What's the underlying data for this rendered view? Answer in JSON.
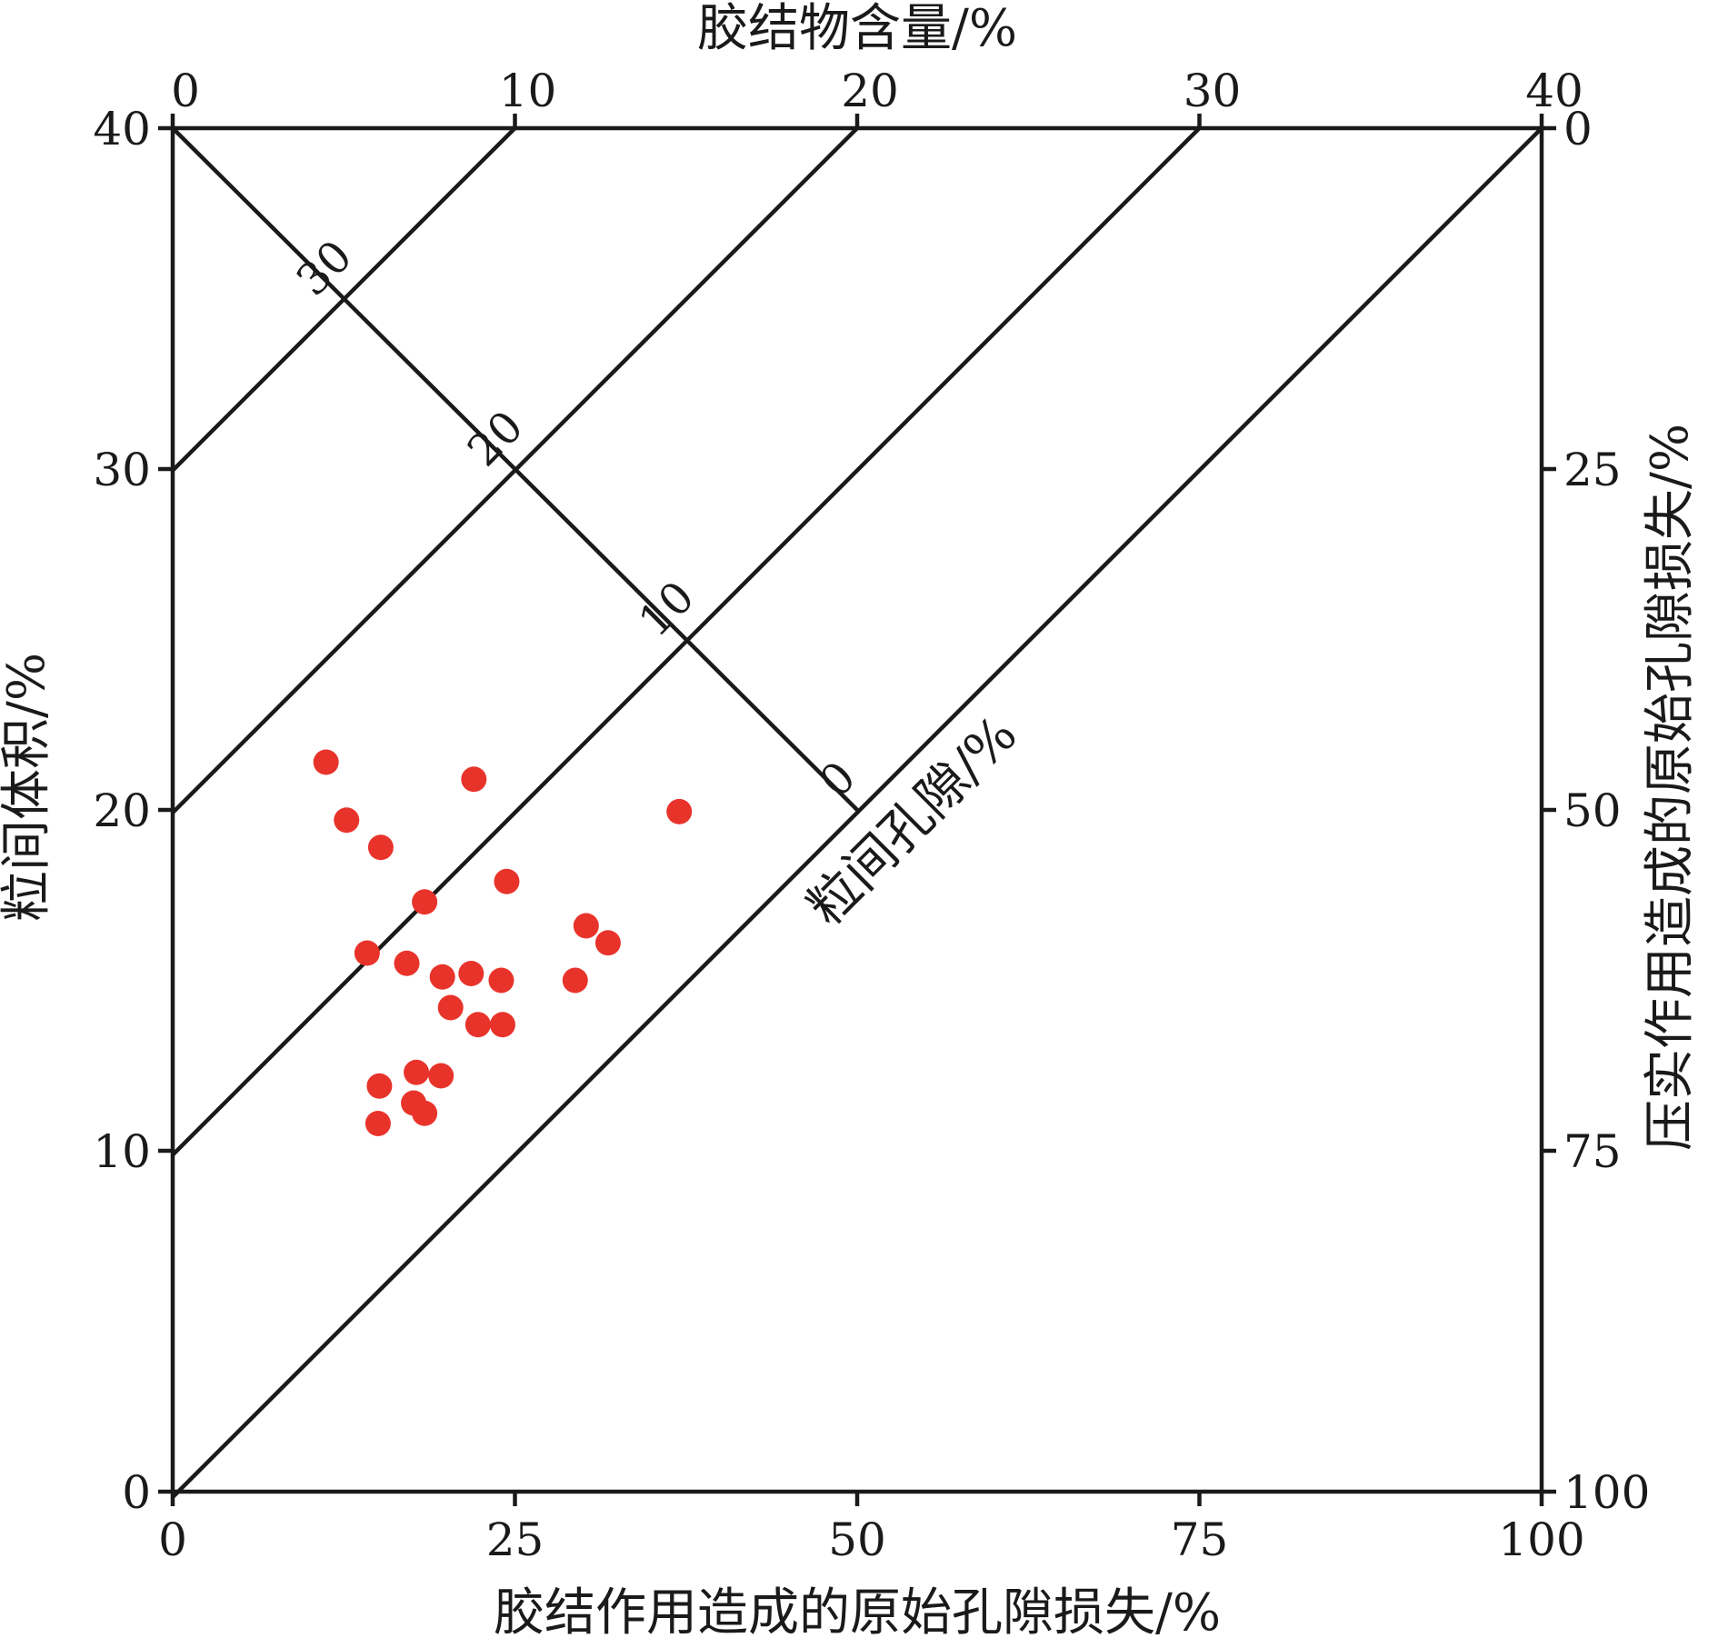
{
  "chart_data": {
    "type": "scatter",
    "title": "",
    "axes": {
      "bottom": {
        "label": "胶结作用造成的原始孔隙损失/%",
        "range": [
          0,
          100
        ],
        "ticks": [
          "0",
          "25",
          "50",
          "75",
          "100"
        ]
      },
      "left": {
        "label": "粒间体积/%",
        "range": [
          0,
          40
        ],
        "ticks": [
          "0",
          "10",
          "20",
          "30",
          "40"
        ]
      },
      "top": {
        "label": "胶结物含量/%",
        "range": [
          0,
          40
        ],
        "ticks": [
          "0",
          "10",
          "20",
          "30",
          "40"
        ]
      },
      "right": {
        "label": "压实作用造成的原始孔隙损失/%",
        "range": [
          0,
          100
        ],
        "reversed": true,
        "ticks": [
          "0",
          "25",
          "50",
          "75",
          "100"
        ]
      }
    },
    "reference_lines": {
      "cement_content": [
        10,
        20,
        30,
        40
      ],
      "intergranular_porosity": {
        "label": "粒间孔隙/%",
        "levels": [
          "30",
          "20",
          "10",
          "0"
        ]
      }
    },
    "series": [
      {
        "marker_color": "#e8332b",
        "x": [
          11.2,
          12.7,
          15.2,
          22.0,
          37.0,
          18.4,
          24.4,
          14.2,
          17.1,
          19.7,
          21.8,
          24.0,
          30.2,
          31.8,
          29.4,
          20.3,
          22.3,
          24.1,
          17.8,
          19.6,
          15.1,
          17.6,
          18.4,
          15.0
        ],
        "y": [
          21.4,
          19.7,
          18.9,
          20.9,
          19.95,
          17.3,
          17.9,
          15.8,
          15.5,
          15.1,
          15.2,
          15.0,
          16.6,
          16.1,
          15.0,
          14.2,
          13.7,
          13.7,
          12.3,
          12.2,
          11.9,
          11.4,
          11.1,
          10.8
        ]
      }
    ],
    "grid": false,
    "legend": "none"
  },
  "colors": {
    "axes": "#1a1a1a",
    "points": "#e8332b"
  }
}
